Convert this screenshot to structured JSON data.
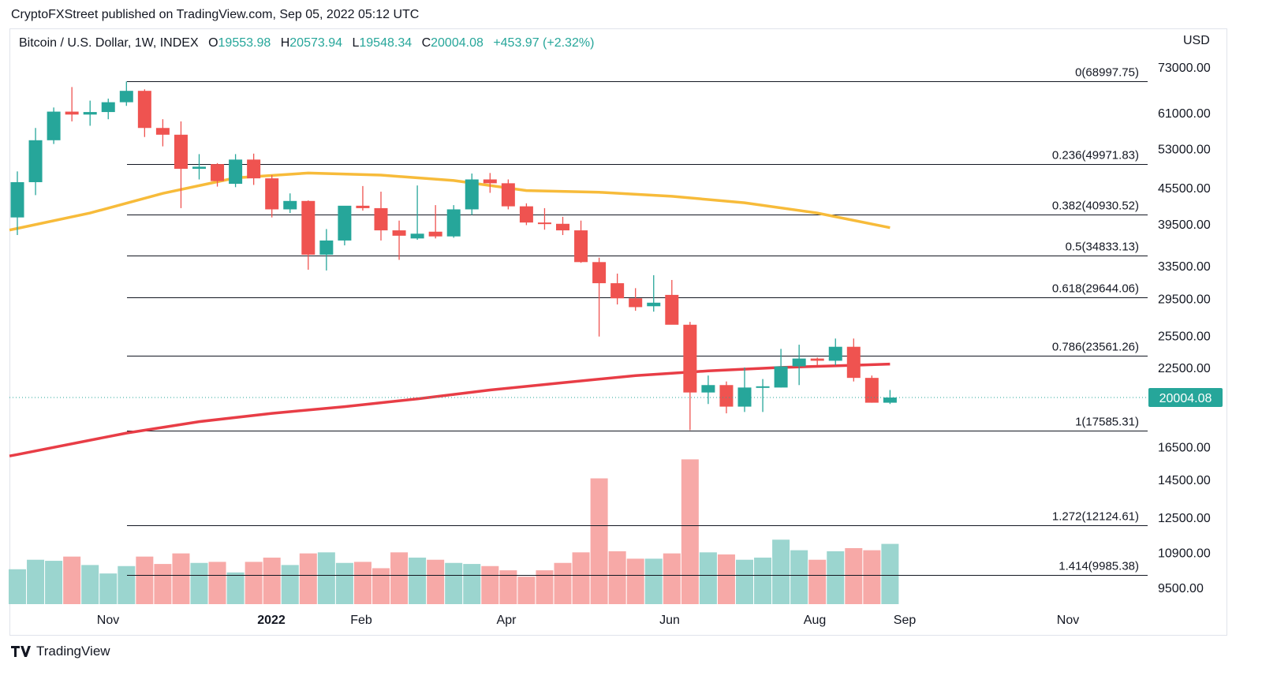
{
  "header": {
    "published": "CryptoFXStreet published on TradingView.com, Sep 05, 2022 05:12 UTC",
    "symbol": "Bitcoin / U.S. Dollar, 1W, INDEX",
    "open_label": "O",
    "open": "19553.98",
    "high_label": "H",
    "high": "20573.94",
    "low_label": "L",
    "low": "19548.34",
    "close_label": "C",
    "close": "20004.08",
    "change": "+453.97 (+2.32%)",
    "currency": "USD"
  },
  "footer": {
    "brand": "TradingView"
  },
  "colors": {
    "up": "#26a69a",
    "down": "#ef5350",
    "vol_up": "#9bd5cf",
    "vol_down": "#f7a9a7",
    "ma50": "#f7bb3a",
    "ma200": "#e83d46",
    "fib": "#131722",
    "last_price": "#26a69a"
  },
  "chart_data": {
    "type": "candlestick",
    "x_ticks": [
      "Nov",
      "2022",
      "Feb",
      "Apr",
      "Jun",
      "Aug",
      "Sep",
      "Nov"
    ],
    "y_ticks": [
      "73000.00",
      "61000.00",
      "53000.00",
      "45500.00",
      "39500.00",
      "33500.00",
      "29500.00",
      "25500.00",
      "22500.00",
      "16500.00",
      "14500.00",
      "12500.00",
      "10900.00",
      "9500.00"
    ],
    "last_price": 20004.08,
    "last_price_label": "20004.08",
    "fib_levels": [
      {
        "label": "0(68997.75)",
        "price": 68997.75
      },
      {
        "label": "0.236(49971.83)",
        "price": 49971.83
      },
      {
        "label": "0.382(40930.52)",
        "price": 40930.52
      },
      {
        "label": "0.5(34833.13)",
        "price": 34833.13
      },
      {
        "label": "0.618(29644.06)",
        "price": 29644.06
      },
      {
        "label": "0.786(23561.26)",
        "price": 23561.26
      },
      {
        "label": "1(17585.31)",
        "price": 17585.31
      },
      {
        "label": "1.272(12124.61)",
        "price": 12124.61
      },
      {
        "label": "1.414(9985.38)",
        "price": 9985.38
      }
    ],
    "candles": [
      {
        "o": 40500,
        "h": 48500,
        "l": 37800,
        "c": 46500
      },
      {
        "o": 46500,
        "h": 57500,
        "l": 44200,
        "c": 54800
      },
      {
        "o": 54800,
        "h": 62300,
        "l": 54000,
        "c": 61300
      },
      {
        "o": 61300,
        "h": 67500,
        "l": 59000,
        "c": 60600
      },
      {
        "o": 60600,
        "h": 64000,
        "l": 58000,
        "c": 61200
      },
      {
        "o": 61200,
        "h": 64500,
        "l": 59500,
        "c": 63600
      },
      {
        "o": 63600,
        "h": 69000,
        "l": 62700,
        "c": 66500
      },
      {
        "o": 66500,
        "h": 66900,
        "l": 55500,
        "c": 57500
      },
      {
        "o": 57500,
        "h": 59500,
        "l": 53500,
        "c": 56000
      },
      {
        "o": 56000,
        "h": 59000,
        "l": 42000,
        "c": 49000
      },
      {
        "o": 49000,
        "h": 51900,
        "l": 47000,
        "c": 49400
      },
      {
        "o": 49900,
        "h": 50100,
        "l": 45700,
        "c": 46700
      },
      {
        "o": 46200,
        "h": 51900,
        "l": 45600,
        "c": 50800
      },
      {
        "o": 50800,
        "h": 52000,
        "l": 46000,
        "c": 47200
      },
      {
        "o": 47200,
        "h": 47800,
        "l": 40500,
        "c": 41800
      },
      {
        "o": 41800,
        "h": 44500,
        "l": 41200,
        "c": 43200
      },
      {
        "o": 43200,
        "h": 43300,
        "l": 33000,
        "c": 35000
      },
      {
        "o": 35000,
        "h": 38700,
        "l": 32900,
        "c": 37000
      },
      {
        "o": 37000,
        "h": 42000,
        "l": 36300,
        "c": 42400
      },
      {
        "o": 42400,
        "h": 45800,
        "l": 41600,
        "c": 42000
      },
      {
        "o": 42000,
        "h": 44800,
        "l": 37000,
        "c": 38500
      },
      {
        "o": 38500,
        "h": 40000,
        "l": 34300,
        "c": 37700
      },
      {
        "o": 37300,
        "h": 45900,
        "l": 37100,
        "c": 38000
      },
      {
        "o": 38300,
        "h": 42500,
        "l": 37300,
        "c": 37600
      },
      {
        "o": 37600,
        "h": 42500,
        "l": 37400,
        "c": 41800
      },
      {
        "o": 41800,
        "h": 48100,
        "l": 40900,
        "c": 47000
      },
      {
        "o": 47000,
        "h": 48200,
        "l": 44600,
        "c": 46300
      },
      {
        "o": 46300,
        "h": 47000,
        "l": 41800,
        "c": 42300
      },
      {
        "o": 42300,
        "h": 42800,
        "l": 39300,
        "c": 39700
      },
      {
        "o": 39700,
        "h": 42000,
        "l": 38600,
        "c": 39500
      },
      {
        "o": 39500,
        "h": 40600,
        "l": 37800,
        "c": 38500
      },
      {
        "o": 38500,
        "h": 40000,
        "l": 33900,
        "c": 34000
      },
      {
        "o": 34000,
        "h": 34600,
        "l": 25400,
        "c": 31300
      },
      {
        "o": 31300,
        "h": 32500,
        "l": 28800,
        "c": 29500
      },
      {
        "o": 29500,
        "h": 30700,
        "l": 28100,
        "c": 28500
      },
      {
        "o": 28600,
        "h": 32300,
        "l": 28000,
        "c": 29000
      },
      {
        "o": 29900,
        "h": 31700,
        "l": 26800,
        "c": 26600
      },
      {
        "o": 26600,
        "h": 26900,
        "l": 17600,
        "c": 20400
      },
      {
        "o": 20400,
        "h": 21800,
        "l": 19500,
        "c": 21000
      },
      {
        "o": 21000,
        "h": 21300,
        "l": 18800,
        "c": 19300
      },
      {
        "o": 19300,
        "h": 22500,
        "l": 18900,
        "c": 20800
      },
      {
        "o": 20800,
        "h": 21500,
        "l": 18900,
        "c": 20900
      },
      {
        "o": 20800,
        "h": 24200,
        "l": 20800,
        "c": 22600
      },
      {
        "o": 22600,
        "h": 24600,
        "l": 21000,
        "c": 23300
      },
      {
        "o": 23300,
        "h": 23400,
        "l": 22700,
        "c": 23100
      },
      {
        "o": 23100,
        "h": 25200,
        "l": 22700,
        "c": 24400
      },
      {
        "o": 24400,
        "h": 25200,
        "l": 21300,
        "c": 21600
      },
      {
        "o": 21600,
        "h": 21800,
        "l": 19600,
        "c": 19600
      },
      {
        "o": 19600,
        "h": 20600,
        "l": 19500,
        "c": 20000
      }
    ],
    "volume": [
      33,
      42,
      41,
      45,
      37,
      29,
      36,
      45,
      38,
      48,
      39,
      40,
      30,
      40,
      44,
      37,
      48,
      49,
      39,
      40,
      34,
      49,
      44,
      42,
      39,
      38,
      36,
      32,
      26,
      32,
      39,
      49,
      119,
      50,
      43,
      43,
      48,
      137,
      49,
      47,
      42,
      44,
      61,
      51,
      42,
      50,
      53,
      51,
      57
    ],
    "ma50": [
      [
        0,
        38800
      ],
      [
        4,
        41200
      ],
      [
        8,
        44500
      ],
      [
        12,
        47300
      ],
      [
        16,
        48200
      ],
      [
        20,
        47800
      ],
      [
        24,
        46800
      ],
      [
        28,
        45000
      ],
      [
        32,
        44700
      ],
      [
        36,
        44000
      ],
      [
        40,
        42900
      ],
      [
        44,
        41200
      ],
      [
        48,
        38900
      ]
    ],
    "ma200": [
      [
        0,
        16000
      ],
      [
        6,
        17400
      ],
      [
        10,
        18200
      ],
      [
        14,
        18800
      ],
      [
        18,
        19300
      ],
      [
        22,
        19900
      ],
      [
        26,
        20600
      ],
      [
        30,
        21200
      ],
      [
        34,
        21800
      ],
      [
        38,
        22200
      ],
      [
        42,
        22500
      ],
      [
        46,
        22700
      ],
      [
        48,
        22800
      ]
    ]
  }
}
